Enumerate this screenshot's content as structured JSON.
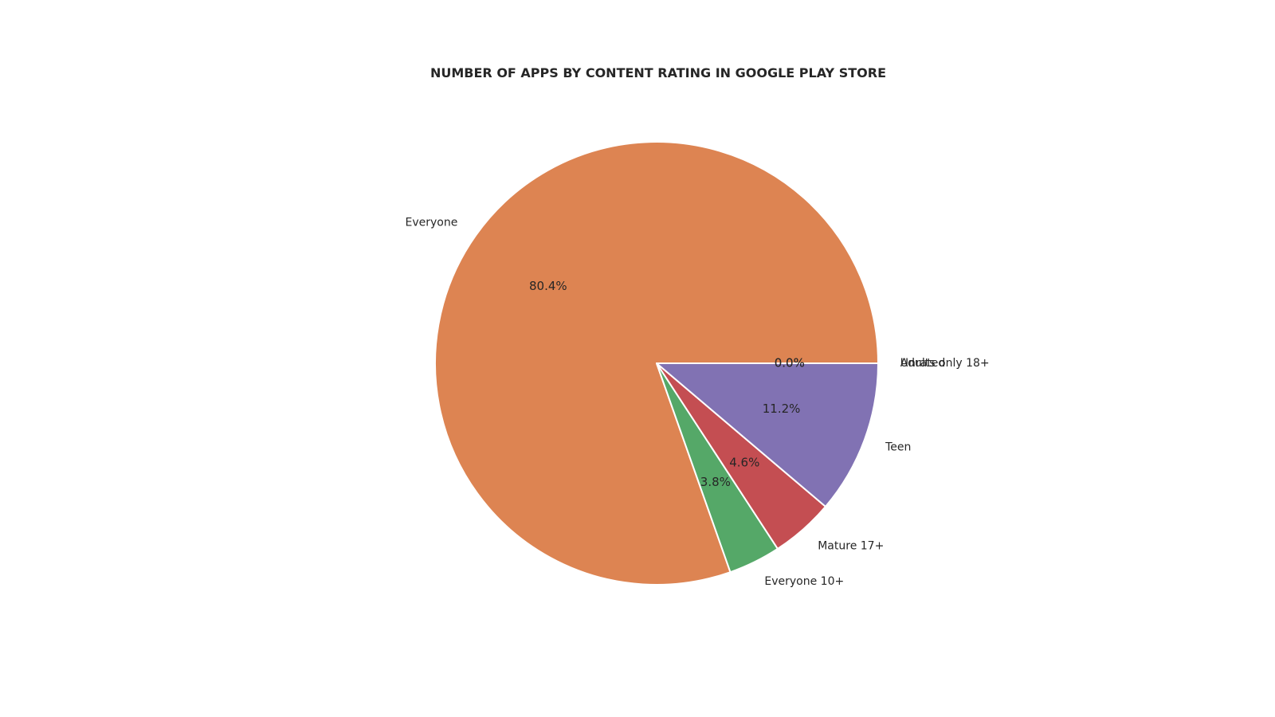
{
  "chart_data": {
    "type": "pie",
    "title": "NUMBER OF APPS BY CONTENT RATING IN GOOGLE PLAY STORE",
    "start_angle_deg": 0,
    "direction": "counterclockwise",
    "slices": [
      {
        "label": "Everyone",
        "value": 80.4,
        "pct_label": "80.4%",
        "color": "#dd8452"
      },
      {
        "label": "Everyone 10+",
        "value": 3.8,
        "pct_label": "3.8%",
        "color": "#55a868"
      },
      {
        "label": "Mature 17+",
        "value": 4.6,
        "pct_label": "4.6%",
        "color": "#c44e52"
      },
      {
        "label": "Teen",
        "value": 11.2,
        "pct_label": "11.2%",
        "color": "#8172b3"
      },
      {
        "label": "Adults only 18+",
        "value": 0.0,
        "pct_label": "0.0%",
        "color": "#937860"
      },
      {
        "label": "Unrated",
        "value": 0.0,
        "pct_label": "0.0%",
        "color": "#da8bc3"
      }
    ],
    "edge_color": "#ffffff"
  }
}
